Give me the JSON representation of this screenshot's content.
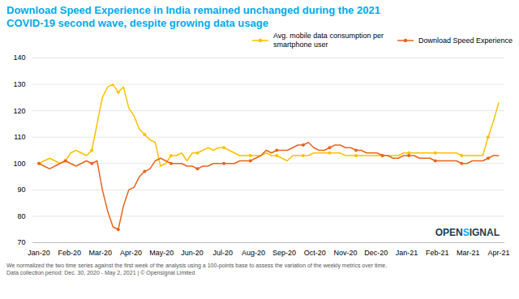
{
  "chart_data": {
    "type": "line",
    "title": "Download Speed Experience in India remained unchanged during the 2021\nCOVID-19 second wave, despite growing data usage",
    "title_color": "#00AAEE",
    "series": [
      {
        "name": "Avg. mobile data consumption per\nsmartphone user",
        "color": "#FFC000",
        "marker": "circle",
        "values": [
          100,
          101,
          102,
          101,
          100,
          101,
          104,
          105,
          104,
          103,
          105,
          115,
          125,
          129,
          130,
          127,
          129,
          121,
          118,
          113,
          111,
          109,
          108,
          99,
          100,
          103,
          103,
          104,
          101,
          104,
          104,
          105,
          106,
          105,
          106,
          106,
          105,
          104,
          103,
          103,
          103,
          103,
          103,
          104,
          103,
          103,
          102,
          101,
          103,
          103,
          103,
          103,
          104,
          104,
          104,
          104,
          104,
          104,
          103,
          103,
          103,
          103,
          103,
          103,
          103,
          103,
          103,
          103,
          103,
          104,
          104,
          104,
          104,
          104,
          104,
          104,
          104,
          104,
          104,
          104,
          103,
          103,
          103,
          103,
          103,
          110,
          116,
          123
        ]
      },
      {
        "name": "Download Speed Experience",
        "color": "#E8651A",
        "marker": "circle",
        "values": [
          100,
          99,
          98,
          99,
          100,
          101,
          100,
          99,
          100,
          101,
          100,
          101,
          90,
          82,
          76,
          75,
          84,
          90,
          91,
          95,
          97,
          98,
          101,
          102,
          101,
          100,
          100,
          100,
          99,
          99,
          98,
          99,
          99,
          100,
          100,
          100,
          100,
          100,
          101,
          101,
          101,
          102,
          103,
          105,
          104,
          105,
          105,
          105,
          106,
          107,
          107,
          108,
          106,
          105,
          105,
          106,
          107,
          107,
          106,
          106,
          105,
          105,
          104,
          104,
          104,
          103,
          103,
          102,
          102,
          103,
          103,
          103,
          102,
          102,
          102,
          101,
          101,
          101,
          101,
          101,
          100,
          100,
          101,
          101,
          101,
          102,
          103,
          103
        ]
      }
    ],
    "xlim": [
      -0.2,
      15.2
    ],
    "xticks": [
      {
        "value": 0,
        "label": "Jan-20"
      },
      {
        "value": 1,
        "label": "Feb-20"
      },
      {
        "value": 2,
        "label": "Mar-20"
      },
      {
        "value": 3,
        "label": "Apr-20"
      },
      {
        "value": 4,
        "label": "May-20"
      },
      {
        "value": 5,
        "label": "Jun-20"
      },
      {
        "value": 6,
        "label": "Jul-20"
      },
      {
        "value": 7,
        "label": "Aug-20"
      },
      {
        "value": 8,
        "label": "Sep-20"
      },
      {
        "value": 9,
        "label": "Oct-20"
      },
      {
        "value": 10,
        "label": "Nov-20"
      },
      {
        "value": 11,
        "label": "Dec-20"
      },
      {
        "value": 12,
        "label": "Jan-21"
      },
      {
        "value": 13,
        "label": "Feb-21"
      },
      {
        "value": 14,
        "label": "Mar-21"
      },
      {
        "value": 15,
        "label": "Apr-21"
      }
    ],
    "ylim": [
      70,
      140
    ],
    "yticks": [
      70,
      80,
      90,
      100,
      110,
      120,
      130,
      140
    ],
    "grid": true,
    "legend": "upper right",
    "logo": [
      {
        "text": "OPEN",
        "color": "#1B3A52"
      },
      {
        "text": "S",
        "color": "#00AAEE"
      },
      {
        "text": "IGNAL",
        "color": "#1B3A52"
      }
    ],
    "footnotes": [
      {
        "text": "We normalized the two time series against the first week of the analysis using a 100-points base to assess the variation of the weekly metrics over time.",
        "color": "#555555"
      },
      {
        "text": "Data collection period: Dec. 30, 2020 - May 2, 2021 | © Opensignal Limited",
        "color": "#555555"
      }
    ]
  }
}
